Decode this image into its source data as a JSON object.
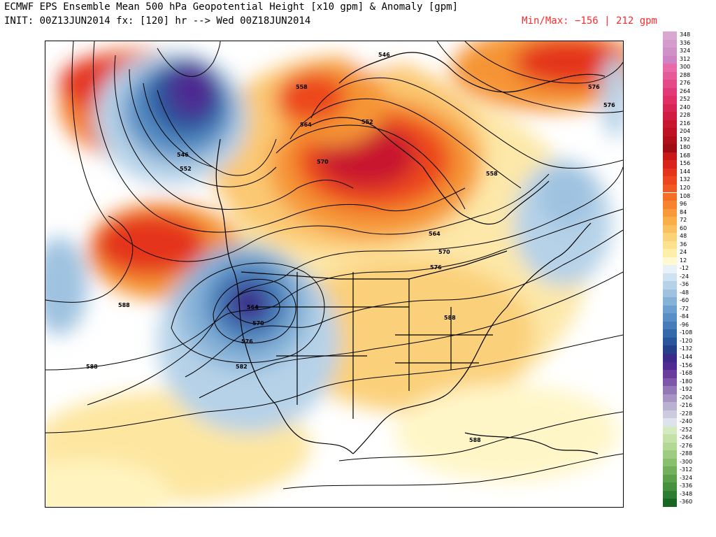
{
  "header": {
    "line1": "ECMWF EPS Ensemble Mean 500 hPa Geopotential Height [x10 gpm] & Anomaly [gpm]",
    "line2": "INIT: 00Z13JUN2014 fx: [120] hr --> Wed 00Z18JUN2014",
    "minmax": "Min/Max:  −156 |  212 gpm"
  },
  "map": {
    "contour_labels": [
      "546",
      "558",
      "552",
      "564",
      "570",
      "546",
      "552",
      "576",
      "576",
      "558",
      "564",
      "570",
      "576",
      "588",
      "564",
      "570",
      "576",
      "582",
      "588",
      "588",
      "588"
    ]
  },
  "colorbar": {
    "labels": [
      "348",
      "336",
      "324",
      "312",
      "300",
      "288",
      "276",
      "264",
      "252",
      "240",
      "228",
      "216",
      "204",
      "192",
      "180",
      "168",
      "156",
      "144",
      "132",
      "120",
      "108",
      "96",
      "84",
      "72",
      "60",
      "48",
      "36",
      "24",
      "12",
      "-12",
      "-24",
      "-36",
      "-48",
      "-60",
      "-72",
      "-84",
      "-96",
      "-108",
      "-120",
      "-132",
      "-144",
      "-156",
      "-168",
      "-180",
      "-192",
      "-204",
      "-216",
      "-228",
      "-240",
      "-252",
      "-264",
      "-276",
      "-288",
      "-300",
      "-312",
      "-324",
      "-336",
      "-348",
      "-360"
    ],
    "colors": [
      "#d8a8d0",
      "#d49ccc",
      "#d090c8",
      "#cc84c4",
      "#e86aa8",
      "#e65a98",
      "#e44a88",
      "#e23a78",
      "#e02e66",
      "#d82452",
      "#d01c40",
      "#c8162e",
      "#be1222",
      "#b00e1a",
      "#a00c14",
      "#c81818",
      "#d8241a",
      "#e4341c",
      "#ec461e",
      "#f05a22",
      "#f46e26",
      "#f6842e",
      "#f89a3a",
      "#f9ae4a",
      "#fac05e",
      "#fbd276",
      "#fce28e",
      "#fdeea8",
      "#fff8d0",
      "#e8f0f8",
      "#cfe2f1",
      "#b6d2e8",
      "#9ec2e0",
      "#86b2d8",
      "#6ea0cf",
      "#588fc4",
      "#447db8",
      "#3469ab",
      "#28569c",
      "#244088",
      "#3c2a8a",
      "#4e2c92",
      "#6a3c9c",
      "#7e58a8",
      "#9478b6",
      "#a894c2",
      "#bab0d0",
      "#cccade",
      "#dde2ec",
      "#d4eac0",
      "#c4e2a8",
      "#b2d894",
      "#9ecc80",
      "#88c06e",
      "#72b05c",
      "#5ca04c",
      "#46903e",
      "#2e7c30",
      "#186622"
    ]
  }
}
